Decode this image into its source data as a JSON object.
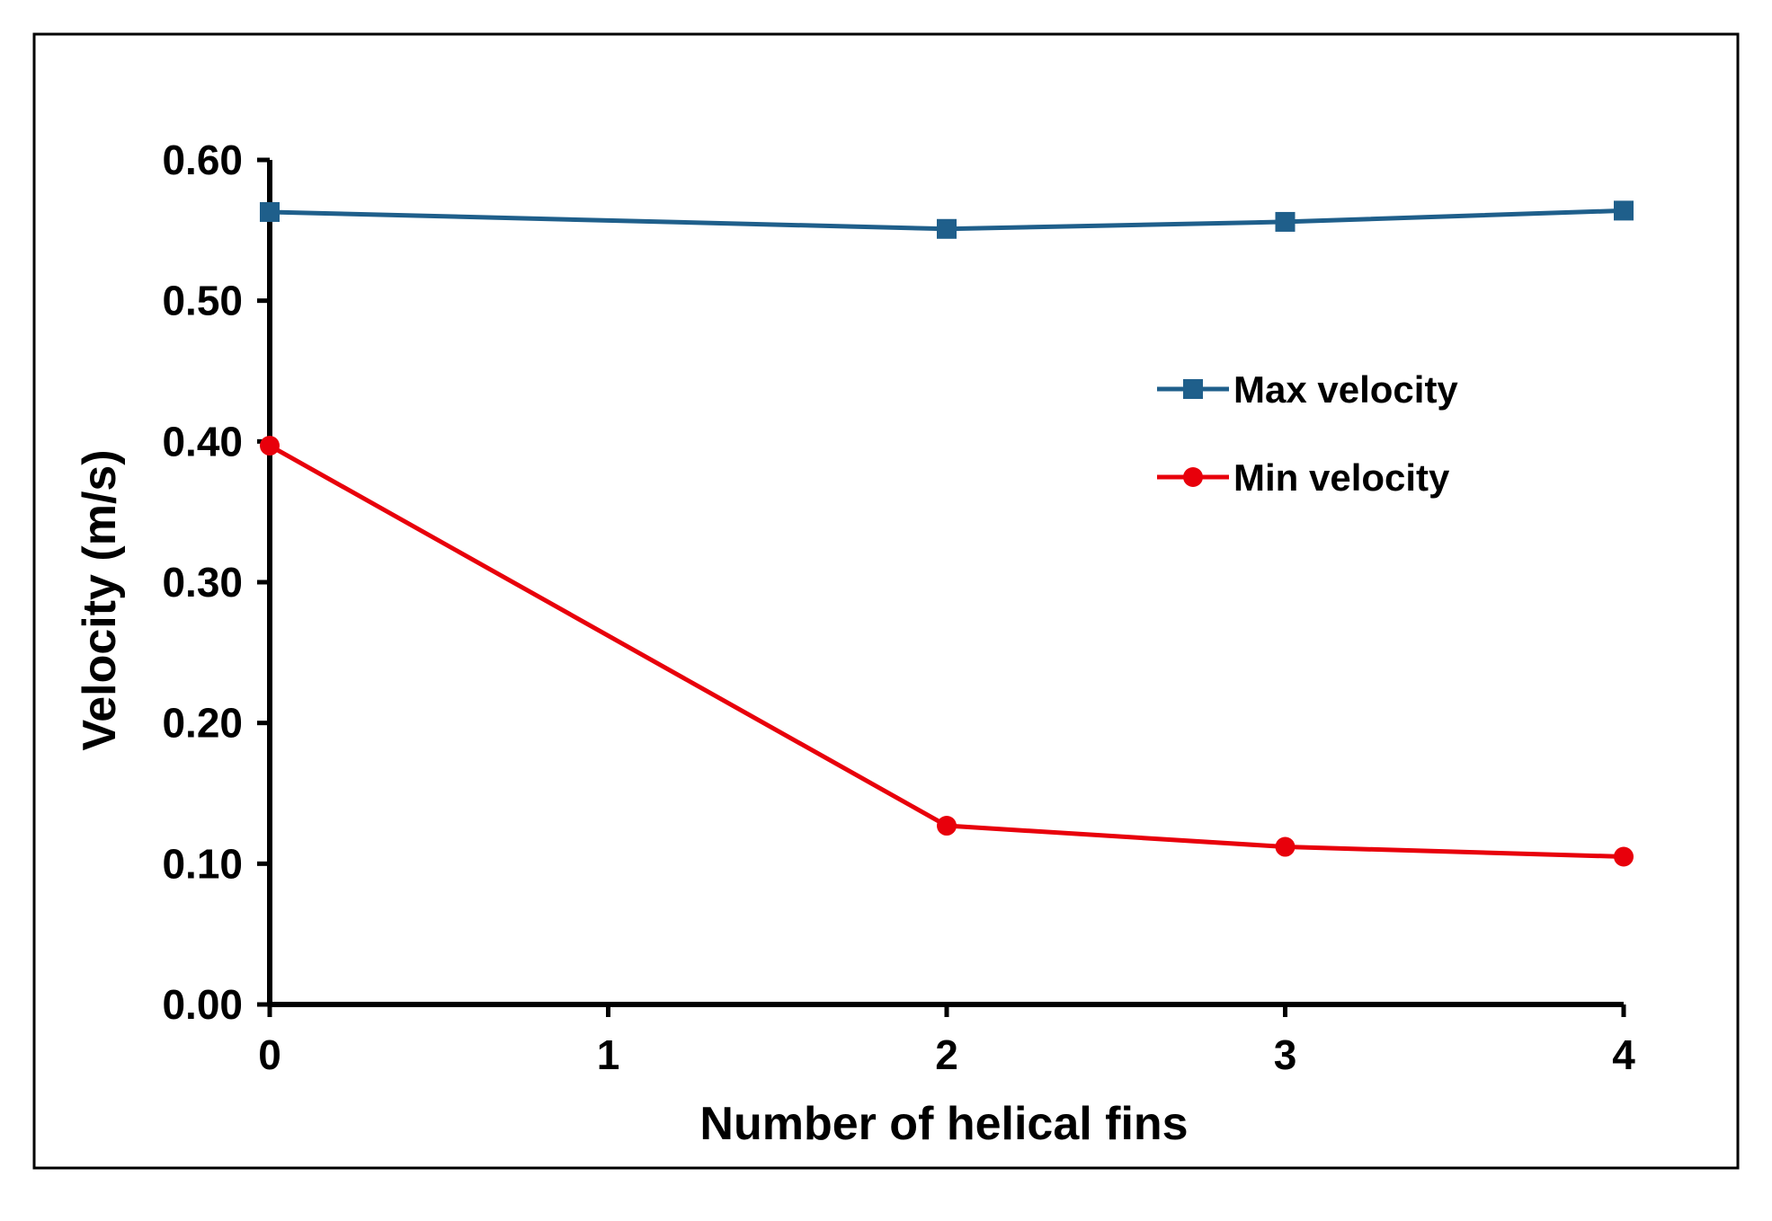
{
  "chart_data": {
    "type": "line",
    "title": "",
    "xlabel": "Number of helical fins",
    "ylabel": "Velocity (m/s)",
    "xlim": [
      0,
      4
    ],
    "ylim": [
      0,
      0.6
    ],
    "x_ticks": [
      0,
      1,
      2,
      3,
      4
    ],
    "x_tick_labels": [
      "0",
      "1",
      "2",
      "3",
      "4"
    ],
    "y_ticks": [
      0,
      0.1,
      0.2,
      0.3,
      0.4,
      0.5,
      0.6
    ],
    "y_tick_labels": [
      "0.00",
      "0.10",
      "0.20",
      "0.30",
      "0.40",
      "0.50",
      "0.60"
    ],
    "grid": false,
    "legend_position": "right",
    "series": [
      {
        "name": "Max velocity",
        "color": "#1f5f8b",
        "marker": "square",
        "x": [
          0,
          2,
          3,
          4
        ],
        "values": [
          0.563,
          0.551,
          0.556,
          0.564
        ]
      },
      {
        "name": "Min velocity",
        "color": "#e8000b",
        "marker": "circle",
        "x": [
          0,
          2,
          3,
          4
        ],
        "values": [
          0.397,
          0.127,
          0.112,
          0.105
        ]
      }
    ]
  }
}
